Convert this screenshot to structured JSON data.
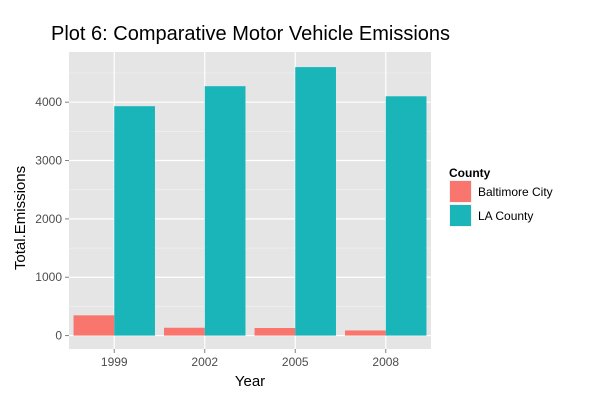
{
  "chart_data": {
    "type": "bar",
    "title": "Plot 6: Comparative Motor Vehicle Emissions",
    "xlabel": "Year",
    "ylabel": "Total.Emissions",
    "categories": [
      "1999",
      "2002",
      "2005",
      "2008"
    ],
    "series": [
      {
        "name": "Baltimore City",
        "color": "#f8766d",
        "values": [
          347,
          134,
          130,
          88
        ]
      },
      {
        "name": "LA County",
        "color": "#19b5b9",
        "values": [
          3931,
          4274,
          4601,
          4101
        ]
      }
    ],
    "ylim": [
      -230,
      4860
    ],
    "yticks": [
      0,
      1000,
      2000,
      3000,
      4000
    ],
    "legend": {
      "title": "County",
      "placement": "right"
    },
    "grid": true,
    "panel_background": "#e5e5e5",
    "grid_color": "#ffffff"
  }
}
